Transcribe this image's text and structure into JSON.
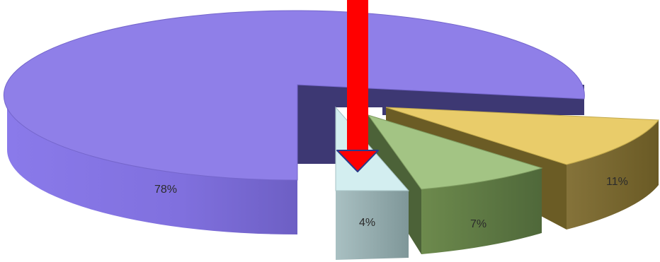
{
  "chart_data": {
    "type": "pie",
    "style": "3d-exploded",
    "title": "",
    "slices": [
      {
        "label": "78%",
        "value": 78,
        "top_color": "#8f7fe8",
        "side_color": "#7d6cd8",
        "edge_color": "#3f3875"
      },
      {
        "label": "4%",
        "value": 4,
        "top_color": "#d3eef0",
        "side_color": "#93acae",
        "edge_color": "#6f8a8c"
      },
      {
        "label": "7%",
        "value": 7,
        "top_color": "#a3c484",
        "side_color": "#5f7a43",
        "edge_color": "#4a6234"
      },
      {
        "label": "11%",
        "value": 11,
        "top_color": "#e9cc6a",
        "side_color": "#7a6a2d",
        "edge_color": "#5c4f20"
      }
    ],
    "annotation": {
      "type": "arrow",
      "direction": "down",
      "color": "#ff0000",
      "outline": "#2a3a8a",
      "points_to": "4%"
    }
  }
}
